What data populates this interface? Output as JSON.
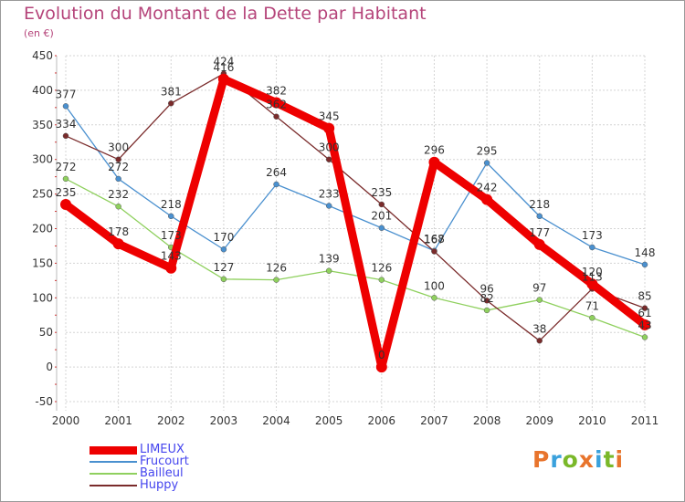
{
  "title": "Evolution du Montant de la Dette par Habitant",
  "subtitle": "(en €)",
  "logo": {
    "letters": [
      "P",
      "r",
      "o",
      "x",
      "i",
      "t",
      "i"
    ],
    "colors": [
      "#e8742c",
      "#3aa1dc",
      "#7ab829",
      "#e8742c",
      "#3aa1dc",
      "#7ab829",
      "#e8742c"
    ]
  },
  "chart_data": {
    "type": "line",
    "x": [
      "2000",
      "2001",
      "2002",
      "2003",
      "2004",
      "2005",
      "2006",
      "2007",
      "2008",
      "2009",
      "2010",
      "2011"
    ],
    "ylim": [
      -50,
      450
    ],
    "yticks": [
      -50,
      0,
      50,
      100,
      150,
      200,
      250,
      300,
      350,
      400,
      450
    ],
    "grid": true,
    "legend_position": "bottom-left",
    "series": [
      {
        "name": "LIMEUX",
        "color": "#ee0000",
        "values": [
          235,
          178,
          143,
          416,
          382,
          345,
          0,
          296,
          242,
          177,
          120,
          61
        ],
        "labels": [
          "235",
          "178",
          "143",
          "416",
          "382",
          "345",
          "0",
          "296",
          "242",
          "177",
          "120",
          "61"
        ]
      },
      {
        "name": "Frucourt",
        "color": "#4a90cf",
        "values": [
          377,
          272,
          218,
          170,
          264,
          233,
          201,
          168,
          295,
          218,
          173,
          148
        ],
        "labels": [
          "377",
          "272",
          "218",
          "170",
          "264",
          "233",
          "201",
          "168",
          "295",
          "218",
          "173",
          "148"
        ]
      },
      {
        "name": "Bailleul",
        "color": "#8fd05e",
        "values": [
          272,
          232,
          173,
          127,
          126,
          139,
          126,
          100,
          82,
          97,
          71,
          43
        ],
        "labels": [
          "272",
          "232",
          "173",
          "127",
          "126",
          "139",
          "126",
          "100",
          "82",
          "97",
          "71",
          "43"
        ]
      },
      {
        "name": "Huppy",
        "color": "#7a2b2b",
        "values": [
          334,
          300,
          381,
          424,
          362,
          300,
          235,
          167,
          96,
          38,
          113,
          85
        ],
        "labels": [
          "334",
          "300",
          "381",
          "424",
          "362",
          "300",
          "235",
          "167",
          "96",
          "38",
          "113",
          "85"
        ]
      }
    ]
  }
}
